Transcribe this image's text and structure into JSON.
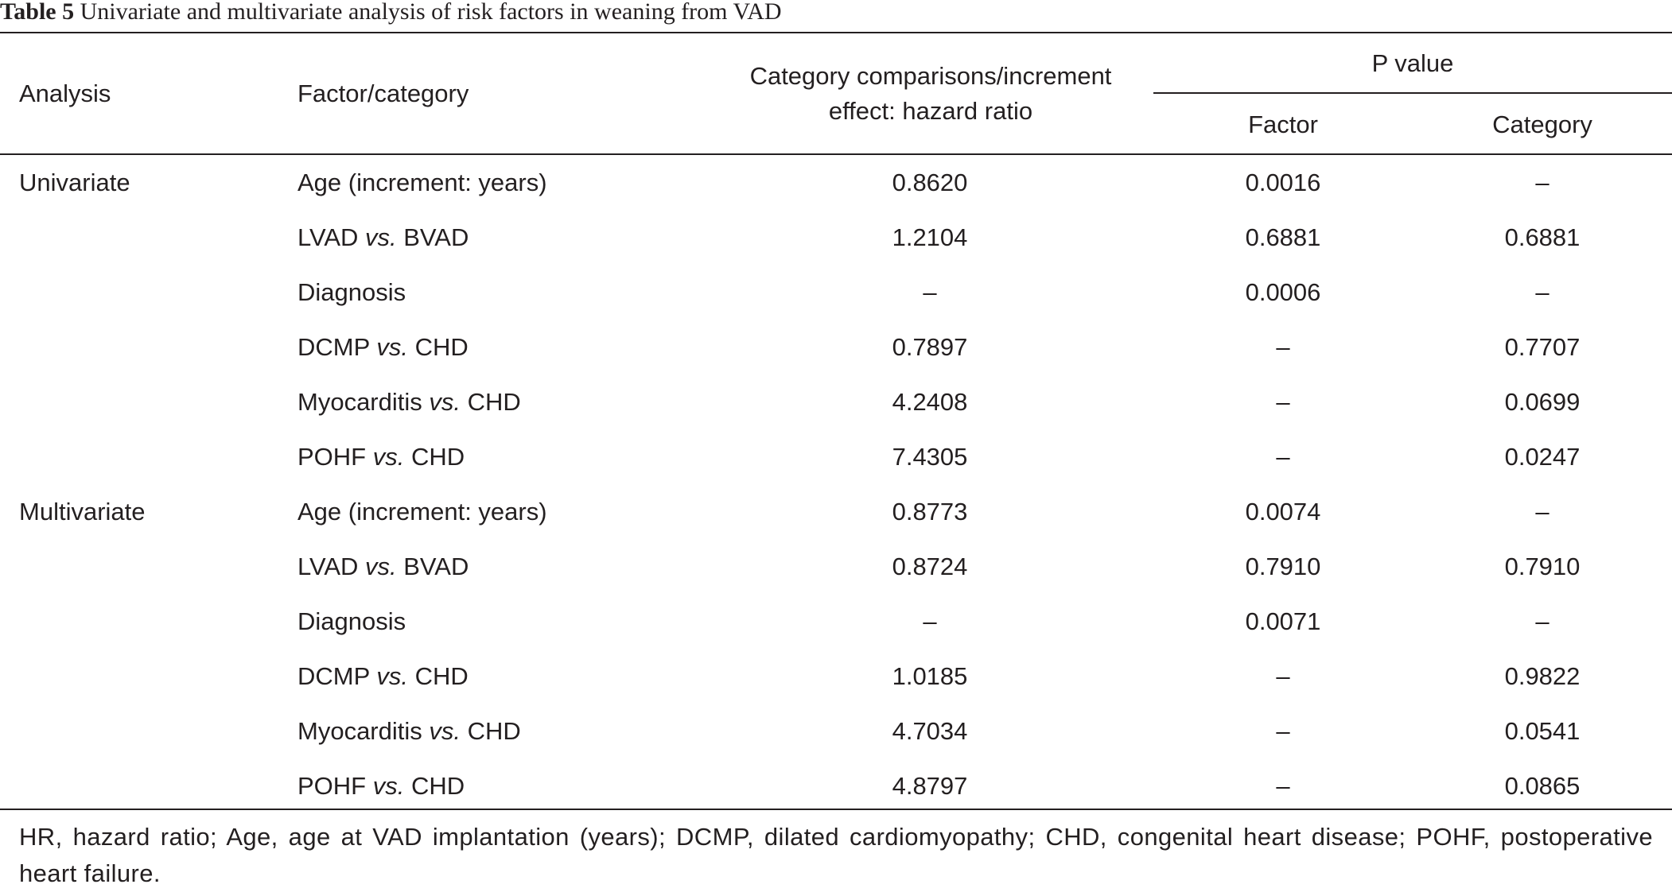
{
  "caption": {
    "label": "Table 5",
    "text": "Univariate and multivariate analysis of risk factors in weaning from VAD"
  },
  "header": {
    "analysis": "Analysis",
    "factor_category": "Factor/category",
    "hr_line1": "Category comparisons/increment",
    "hr_line2": "effect: hazard ratio",
    "p_value": "P value",
    "p_factor": "Factor",
    "p_category": "Category"
  },
  "rows": [
    {
      "analysis": "Univariate",
      "factor": "Age (increment: years)",
      "hr": "0.8620",
      "p_factor": "0.0016",
      "p_category": "–"
    },
    {
      "analysis": "",
      "factor_a": "LVAD ",
      "vs": "vs.",
      "factor_b": " BVAD",
      "hr": "1.2104",
      "p_factor": "0.6881",
      "p_category": "0.6881"
    },
    {
      "analysis": "",
      "factor": "Diagnosis",
      "hr": "–",
      "p_factor": "0.0006",
      "p_category": "–"
    },
    {
      "analysis": "",
      "factor_a": "DCMP ",
      "vs": "vs.",
      "factor_b": " CHD",
      "hr": "0.7897",
      "p_factor": "–",
      "p_category": "0.7707"
    },
    {
      "analysis": "",
      "factor_a": "Myocarditis ",
      "vs": "vs.",
      "factor_b": " CHD",
      "hr": "4.2408",
      "p_factor": "–",
      "p_category": "0.0699"
    },
    {
      "analysis": "",
      "factor_a": "POHF ",
      "vs": "vs.",
      "factor_b": " CHD",
      "hr": "7.4305",
      "p_factor": "–",
      "p_category": "0.0247"
    },
    {
      "analysis": "Multivariate",
      "factor": "Age (increment: years)",
      "hr": "0.8773",
      "p_factor": "0.0074",
      "p_category": "–"
    },
    {
      "analysis": "",
      "factor_a": "LVAD ",
      "vs": "vs.",
      "factor_b": " BVAD",
      "hr": "0.8724",
      "p_factor": "0.7910",
      "p_category": "0.7910"
    },
    {
      "analysis": "",
      "factor": "Diagnosis",
      "hr": "–",
      "p_factor": "0.0071",
      "p_category": "–"
    },
    {
      "analysis": "",
      "factor_a": "DCMP ",
      "vs": "vs.",
      "factor_b": " CHD",
      "hr": "1.0185",
      "p_factor": "–",
      "p_category": "0.9822"
    },
    {
      "analysis": "",
      "factor_a": "Myocarditis ",
      "vs": "vs.",
      "factor_b": " CHD",
      "hr": "4.7034",
      "p_factor": "–",
      "p_category": "0.0541"
    },
    {
      "analysis": "",
      "factor_a": "POHF ",
      "vs": "vs.",
      "factor_b": " CHD",
      "hr": "4.8797",
      "p_factor": "–",
      "p_category": "0.0865"
    }
  ],
  "footnote": "HR, hazard ratio; Age, age at VAD implantation (years); DCMP, dilated cardiomyopathy; CHD, congenital heart disease; POHF, postoperative heart failure."
}
